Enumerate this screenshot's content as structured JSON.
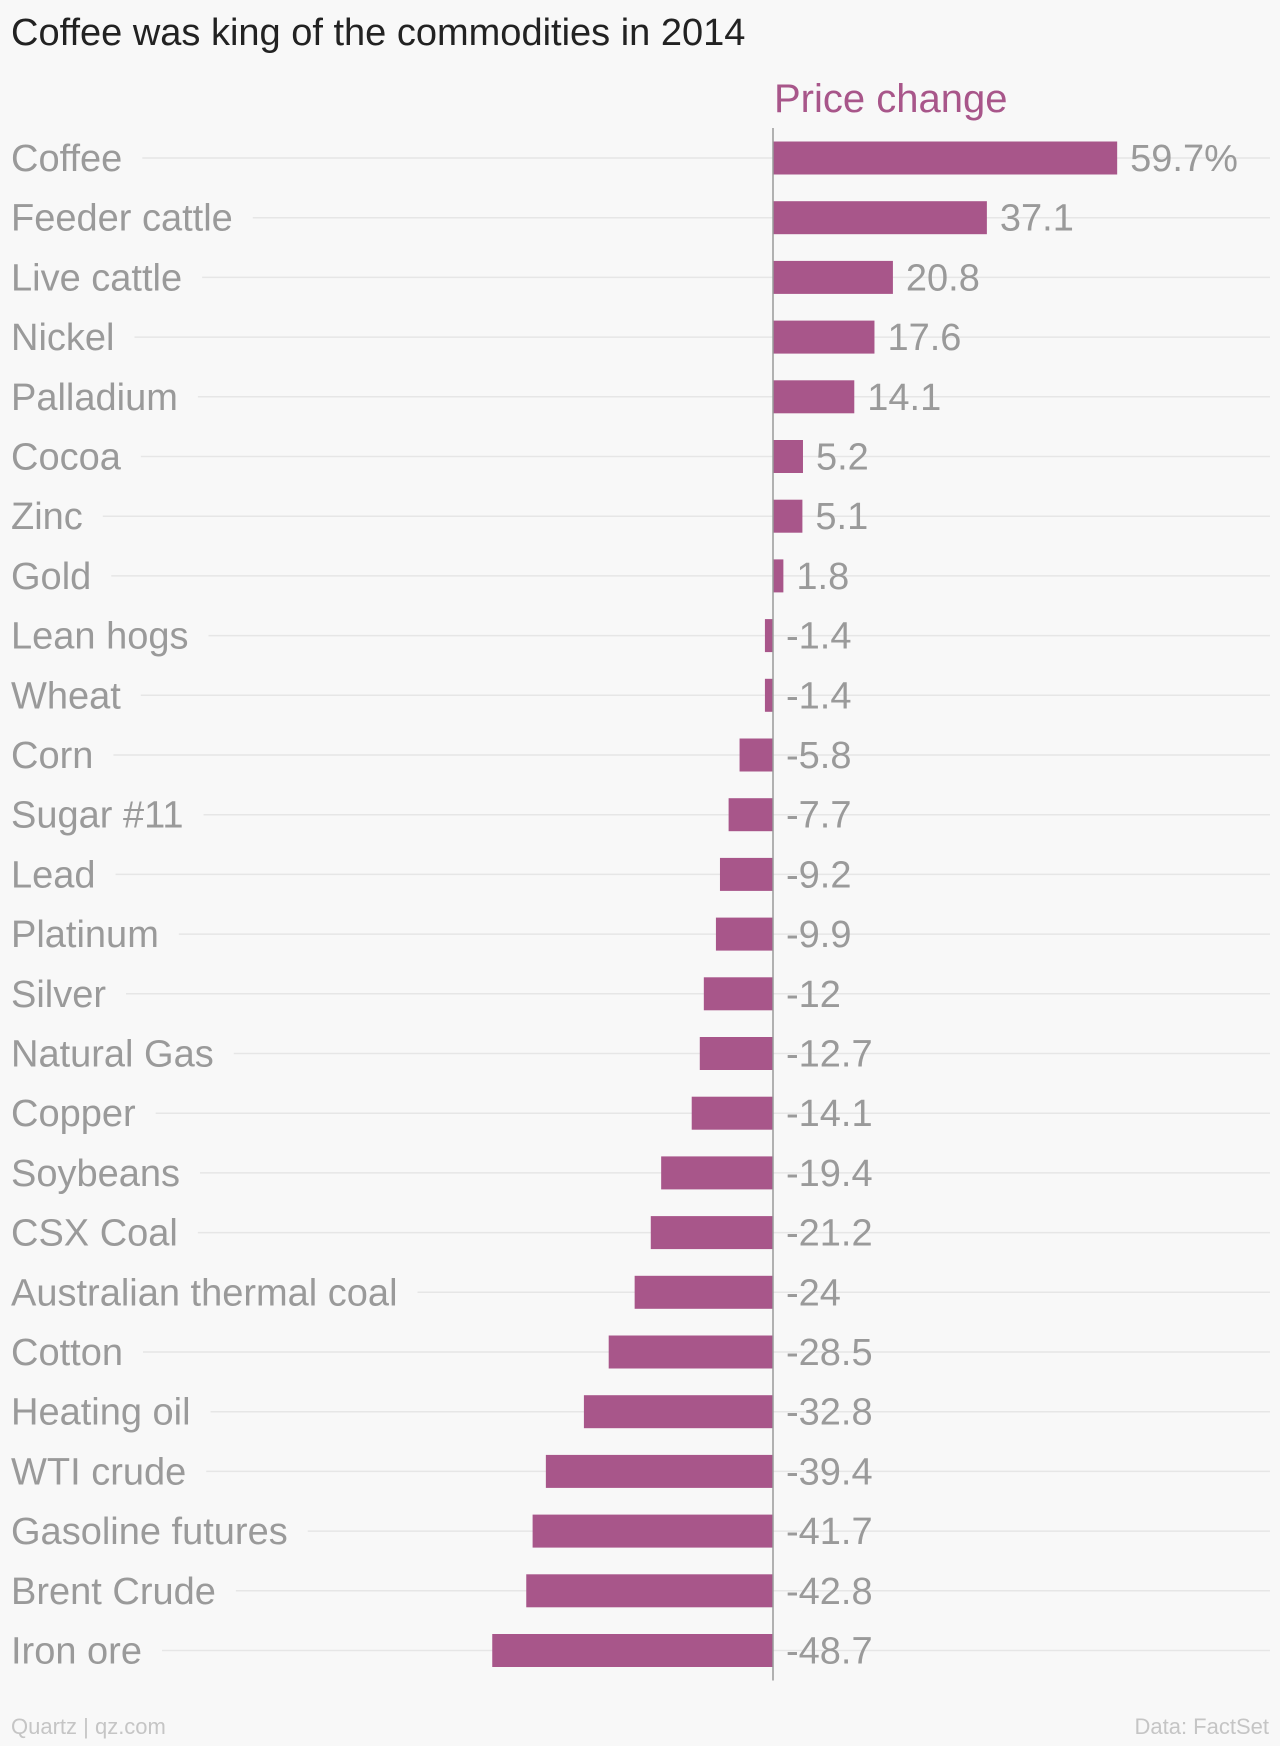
{
  "title": "Coffee was king of the commodities in 2014",
  "footer": {
    "left": "Quartz | qz.com",
    "right": "Data: FactSet"
  },
  "colors": {
    "bar": "#a8568a",
    "series_label": "#a8568a",
    "category_text": "#9a9a9a",
    "value_text": "#9a9a9a",
    "gridline": "#e6e6e6",
    "axis": "#999999"
  },
  "chart_data": {
    "type": "bar",
    "orientation": "horizontal",
    "series": [
      {
        "name": "Price change",
        "values": [
          59.7,
          37.1,
          20.8,
          17.6,
          14.1,
          5.2,
          5.1,
          1.8,
          -1.4,
          -1.4,
          -5.8,
          -7.7,
          -9.2,
          -9.9,
          -12,
          -12.7,
          -14.1,
          -19.4,
          -21.2,
          -24,
          -28.5,
          -32.8,
          -39.4,
          -41.7,
          -42.8,
          -48.7
        ]
      }
    ],
    "categories": [
      "Coffee",
      "Feeder cattle",
      "Live cattle",
      "Nickel",
      "Palladium",
      "Cocoa",
      "Zinc",
      "Gold",
      "Lean hogs",
      "Wheat",
      "Corn",
      "Sugar #11",
      "Lead",
      "Platinum",
      "Silver",
      "Natural Gas",
      "Copper",
      "Soybeans",
      "CSX Coal",
      "Australian thermal coal",
      "Cotton",
      "Heating oil",
      "WTI crude",
      "Gasoline futures",
      "Brent Crude",
      "Iron ore"
    ],
    "value_labels": [
      "59.7%",
      "37.1",
      "20.8",
      "17.6",
      "14.1",
      "5.2",
      "5.1",
      "1.8",
      "-1.4",
      "-1.4",
      "-5.8",
      "-7.7",
      "-9.2",
      "-9.9",
      "-12",
      "-12.7",
      "-14.1",
      "-19.4",
      "-21.2",
      "-24",
      "-28.5",
      "-32.8",
      "-39.4",
      "-41.7",
      "-42.8",
      "-48.7"
    ],
    "xlim": [
      -48.7,
      59.7
    ],
    "grid": true
  }
}
